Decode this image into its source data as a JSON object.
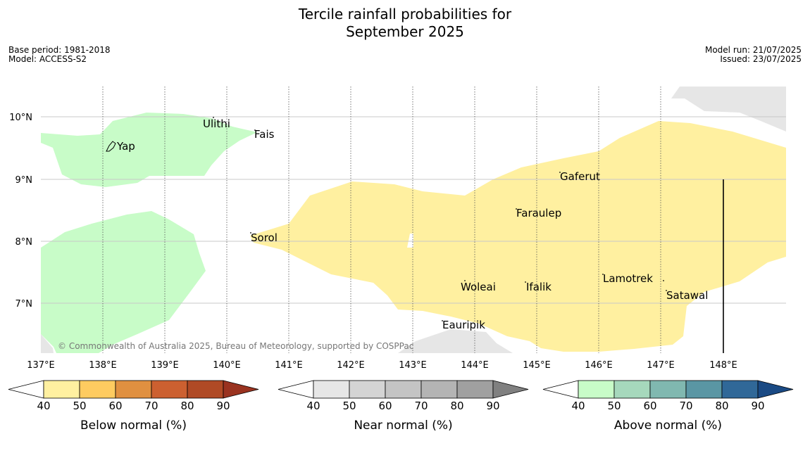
{
  "title_line1": "Tercile rainfall probabilities for",
  "title_line2": "September 2025",
  "meta": {
    "base_period": "Base period: 1981-2018",
    "model": "Model: ACCESS-S2",
    "model_run": "Model run: 21/07/2025",
    "issued": "Issued: 23/07/2025"
  },
  "lon_ticks": [
    "137°E",
    "138°E",
    "139°E",
    "140°E",
    "141°E",
    "142°E",
    "143°E",
    "144°E",
    "145°E",
    "146°E",
    "147°E",
    "148°E"
  ],
  "lat_ticks": [
    "10°N",
    "9°N",
    "8°N",
    "7°N"
  ],
  "places": [
    "Ulithi",
    "Fais",
    "Yap",
    "Gaferut",
    "Faraulep",
    "Sorol",
    "Lamotrek",
    "Woleai",
    "Ifalik",
    "Satawal",
    "Eauripik"
  ],
  "credit": "© Commonwealth of Australia 2025, Bureau of Meteorology, supported by COSPPac",
  "colorbars": [
    {
      "title": "Below normal (%)",
      "ticks": [
        "40",
        "50",
        "60",
        "70",
        "80",
        "90"
      ],
      "colors": [
        "#fff0a0",
        "#fecb60",
        "#e09040",
        "#cc6030",
        "#b04a25",
        "#9a3320"
      ]
    },
    {
      "title": "Near normal (%)",
      "ticks": [
        "40",
        "50",
        "60",
        "70",
        "80",
        "90"
      ],
      "colors": [
        "#e6e6e6",
        "#d4d4d4",
        "#c4c4c4",
        "#b4b4b4",
        "#a0a0a0",
        "#808080"
      ]
    },
    {
      "title": "Above normal (%)",
      "ticks": [
        "40",
        "50",
        "60",
        "70",
        "80",
        "90"
      ],
      "colors": [
        "#c8fcc8",
        "#a6d8bc",
        "#80b8b0",
        "#5a96a4",
        "#306898",
        "#1a4a84"
      ]
    }
  ],
  "fill_colors": {
    "below": "#fff0a0",
    "near": "#e6e6e6",
    "above": "#c8fcc8"
  }
}
